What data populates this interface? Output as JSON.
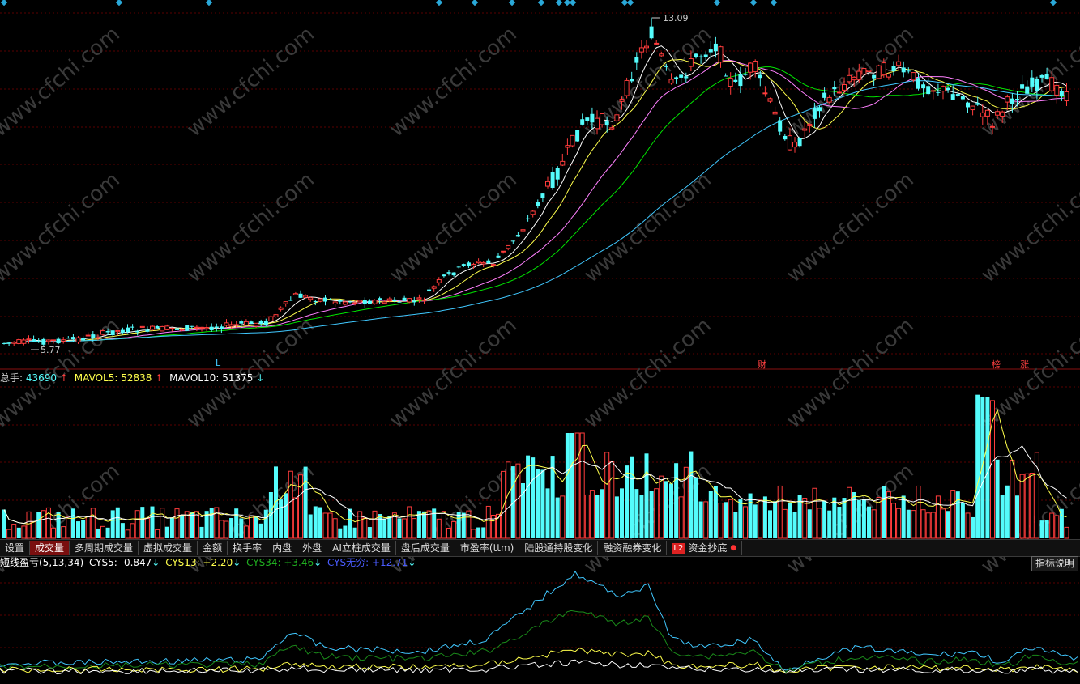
{
  "main": {
    "high_label": "13.09",
    "low_label": "5.77",
    "markers": {
      "l": "L",
      "cai": "财",
      "bang": "榜",
      "zhang": "涨"
    }
  },
  "volume": {
    "total_label": "总手:",
    "total_value": "43690",
    "total_arrow": "↑",
    "mavol5_label": "MAVOL5:",
    "mavol5_value": "52838",
    "mavol5_arrow": "↑",
    "mavol10_label": "MAVOL10:",
    "mavol10_value": "51375",
    "mavol10_arrow": "↓"
  },
  "tabs": [
    "设置",
    "成交量",
    "多周期成交量",
    "虚拟成交量",
    "金额",
    "换手率",
    "内盘",
    "外盘",
    "AI立桩成交量",
    "盘后成交量",
    "市盈率(ttm)",
    "陆股通持股变化",
    "融资融券变化"
  ],
  "l2_tab": {
    "badge": "L2",
    "label": "资金抄底"
  },
  "indicator": {
    "name": "短线盈亏(5,13,34)",
    "cys5": "CYS5: -0.847",
    "cys5_arrow": "↓",
    "cys13": "CYS13: +2.20",
    "cys13_arrow": "↓",
    "cys34": "CYS34: +3.46",
    "cys34_arrow": "↓",
    "cysinf": "CYS无穷: +12.71",
    "cysinf_arrow": "↓",
    "explain": "指标说明"
  },
  "watermark": "www.cfchi.com",
  "colors": {
    "bg": "#000000",
    "up": "#ff3c3c",
    "down": "#54fcfc",
    "ma5": "#ffffff",
    "ma10": "#ffff4c",
    "ma20": "#ff80ff",
    "ma30": "#00e600",
    "ma60": "#40c8ff",
    "grid": "#5a0000"
  }
}
